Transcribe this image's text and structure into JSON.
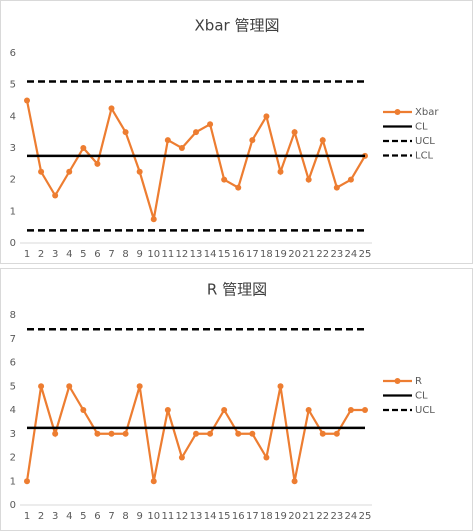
{
  "chart_data": [
    {
      "type": "line",
      "title": "Xbar 管理図",
      "categories": [
        "1",
        "2",
        "3",
        "4",
        "5",
        "6",
        "7",
        "8",
        "9",
        "10",
        "11",
        "12",
        "13",
        "14",
        "15",
        "16",
        "17",
        "18",
        "19",
        "20",
        "21",
        "22",
        "23",
        "24",
        "25"
      ],
      "ylim": [
        0,
        6
      ],
      "yticks": [
        0,
        1,
        2,
        3,
        4,
        5,
        6
      ],
      "series": [
        {
          "name": "Xbar",
          "color": "#ed7d31",
          "marker": true,
          "dash": false,
          "values": [
            4.5,
            2.25,
            1.5,
            2.25,
            3,
            2.5,
            4.25,
            3.5,
            2.25,
            0.75,
            3.25,
            3,
            3.5,
            3.75,
            2,
            1.75,
            3.25,
            4,
            2.25,
            3.5,
            2,
            3.25,
            1.75,
            2,
            2.75
          ]
        },
        {
          "name": "CL",
          "color": "#000000",
          "marker": false,
          "dash": false,
          "values": [
            2.75,
            2.75,
            2.75,
            2.75,
            2.75,
            2.75,
            2.75,
            2.75,
            2.75,
            2.75,
            2.75,
            2.75,
            2.75,
            2.75,
            2.75,
            2.75,
            2.75,
            2.75,
            2.75,
            2.75,
            2.75,
            2.75,
            2.75,
            2.75,
            2.75
          ]
        },
        {
          "name": "UCL",
          "color": "#000000",
          "marker": false,
          "dash": true,
          "values": [
            5.1,
            5.1,
            5.1,
            5.1,
            5.1,
            5.1,
            5.1,
            5.1,
            5.1,
            5.1,
            5.1,
            5.1,
            5.1,
            5.1,
            5.1,
            5.1,
            5.1,
            5.1,
            5.1,
            5.1,
            5.1,
            5.1,
            5.1,
            5.1,
            5.1
          ]
        },
        {
          "name": "LCL",
          "color": "#000000",
          "marker": false,
          "dash": true,
          "values": [
            0.4,
            0.4,
            0.4,
            0.4,
            0.4,
            0.4,
            0.4,
            0.4,
            0.4,
            0.4,
            0.4,
            0.4,
            0.4,
            0.4,
            0.4,
            0.4,
            0.4,
            0.4,
            0.4,
            0.4,
            0.4,
            0.4,
            0.4,
            0.4,
            0.4
          ]
        }
      ]
    },
    {
      "type": "line",
      "title": "R 管理図",
      "categories": [
        "1",
        "2",
        "3",
        "4",
        "5",
        "6",
        "7",
        "8",
        "9",
        "10",
        "11",
        "12",
        "13",
        "14",
        "15",
        "16",
        "17",
        "18",
        "19",
        "20",
        "21",
        "22",
        "23",
        "24",
        "25"
      ],
      "ylim": [
        0,
        8
      ],
      "yticks": [
        0,
        1,
        2,
        3,
        4,
        5,
        6,
        7,
        8
      ],
      "series": [
        {
          "name": "R",
          "color": "#ed7d31",
          "marker": true,
          "dash": false,
          "values": [
            1,
            5,
            3,
            5,
            4,
            3,
            3,
            3,
            5,
            1,
            4,
            2,
            3,
            3,
            4,
            3,
            3,
            2,
            5,
            1,
            4,
            3,
            3,
            4,
            4
          ]
        },
        {
          "name": "CL",
          "color": "#000000",
          "marker": false,
          "dash": false,
          "values": [
            3.25,
            3.25,
            3.25,
            3.25,
            3.25,
            3.25,
            3.25,
            3.25,
            3.25,
            3.25,
            3.25,
            3.25,
            3.25,
            3.25,
            3.25,
            3.25,
            3.25,
            3.25,
            3.25,
            3.25,
            3.25,
            3.25,
            3.25,
            3.25,
            3.25
          ]
        },
        {
          "name": "UCL",
          "color": "#000000",
          "marker": false,
          "dash": true,
          "values": [
            7.4,
            7.4,
            7.4,
            7.4,
            7.4,
            7.4,
            7.4,
            7.4,
            7.4,
            7.4,
            7.4,
            7.4,
            7.4,
            7.4,
            7.4,
            7.4,
            7.4,
            7.4,
            7.4,
            7.4,
            7.4,
            7.4,
            7.4,
            7.4,
            7.4
          ]
        }
      ]
    }
  ]
}
